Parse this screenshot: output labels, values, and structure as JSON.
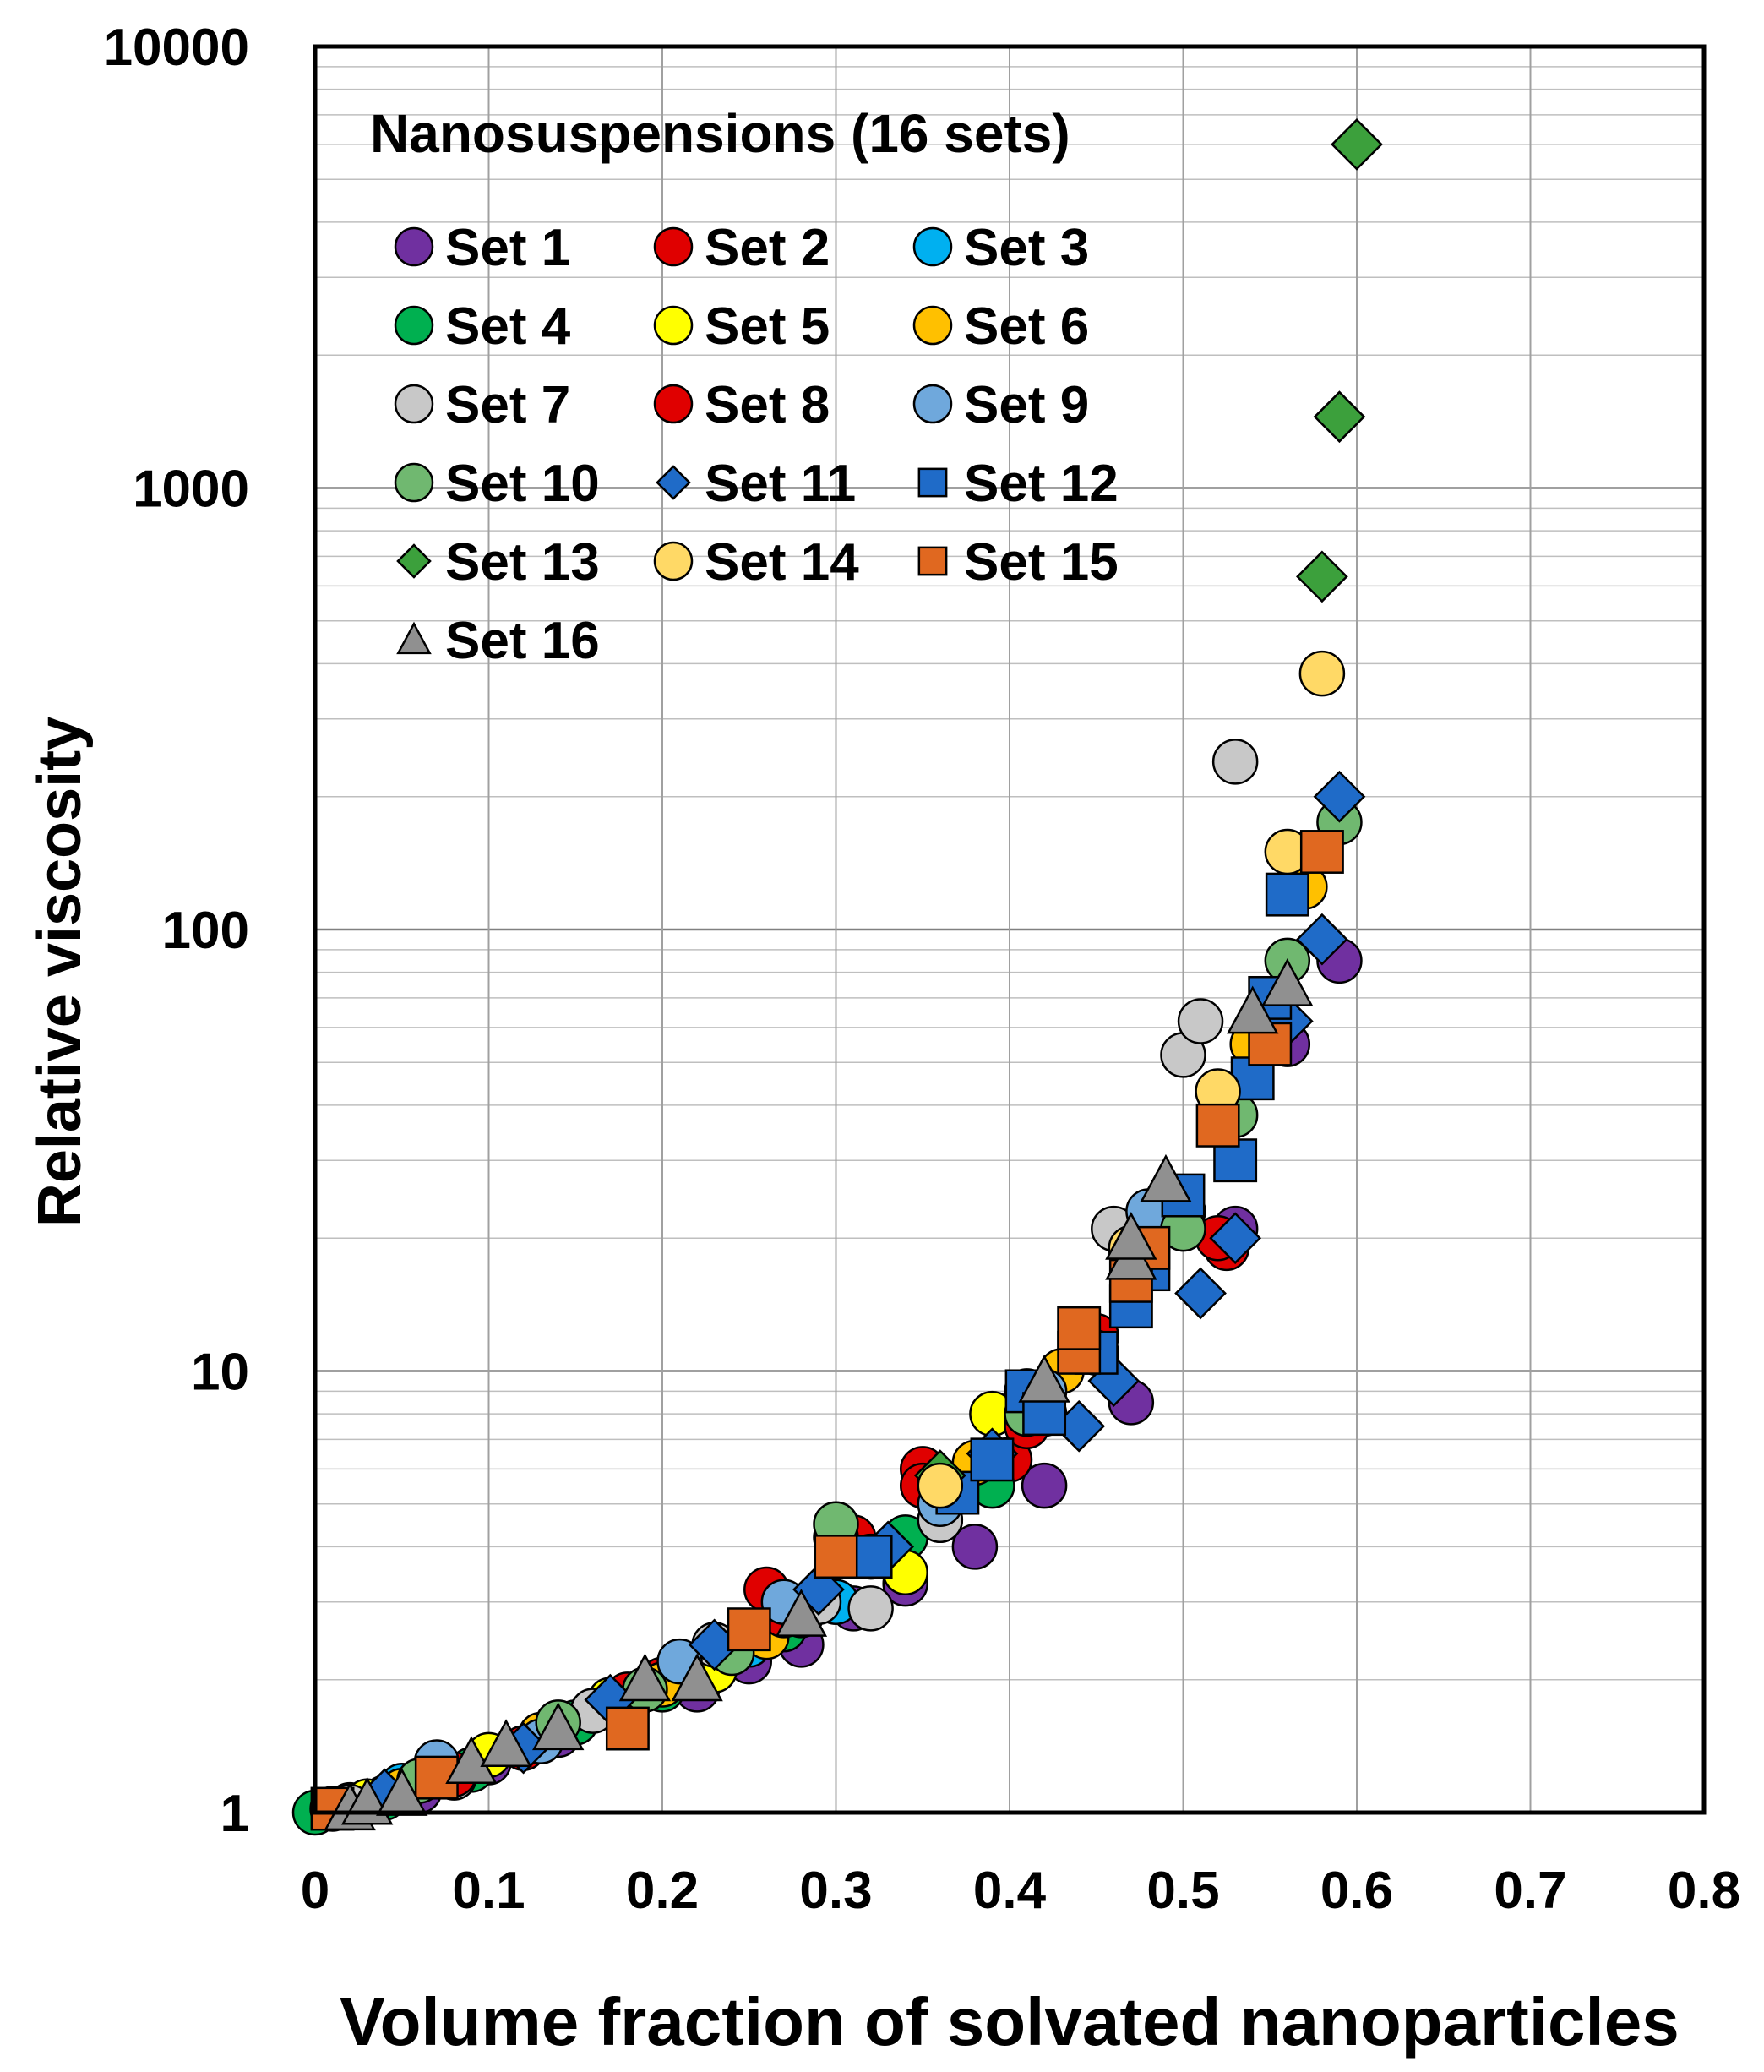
{
  "chart_data": {
    "type": "scatter",
    "title": "",
    "xlabel": "Volume fraction of solvated nanoparticles",
    "ylabel": "Relative viscosity",
    "xlim": [
      0,
      0.8
    ],
    "ylim": [
      1,
      10000
    ],
    "yscale": "log",
    "grid": true,
    "legend_title": "Nanosuspensions (16 sets)",
    "legend_position": "top-left",
    "x_ticks": [
      "0",
      "0.1",
      "0.2",
      "0.3",
      "0.4",
      "0.5",
      "0.6",
      "0.7",
      "0.8"
    ],
    "y_ticks": [
      "1",
      "10",
      "100",
      "1000",
      "10000"
    ],
    "series": [
      {
        "name": "Set 1",
        "marker": "circle",
        "color": "#7030A0",
        "points": [
          [
            0.02,
            1.04
          ],
          [
            0.06,
            1.12
          ],
          [
            0.1,
            1.3
          ],
          [
            0.14,
            1.5
          ],
          [
            0.18,
            1.75
          ],
          [
            0.22,
            1.9
          ],
          [
            0.25,
            2.2
          ],
          [
            0.28,
            2.4
          ],
          [
            0.31,
            2.9
          ],
          [
            0.34,
            3.3
          ],
          [
            0.38,
            4.0
          ],
          [
            0.42,
            5.5
          ],
          [
            0.47,
            8.5
          ],
          [
            0.53,
            21
          ],
          [
            0.56,
            55
          ],
          [
            0.59,
            85
          ]
        ]
      },
      {
        "name": "Set 2",
        "marker": "circle",
        "color": "#E00000",
        "points": [
          [
            0.12,
            1.4
          ],
          [
            0.2,
            2.0
          ],
          [
            0.26,
            3.2
          ],
          [
            0.31,
            4.2
          ],
          [
            0.35,
            6.0
          ],
          [
            0.4,
            6.3
          ],
          [
            0.45,
            12
          ],
          [
            0.5,
            23
          ],
          [
            0.525,
            19
          ]
        ]
      },
      {
        "name": "Set 3",
        "marker": "circle",
        "color": "#00B0F0",
        "points": [
          [
            0.05,
            1.15
          ],
          [
            0.15,
            1.6
          ],
          [
            0.25,
            2.4
          ],
          [
            0.3,
            3.0
          ],
          [
            0.36,
            4.6
          ],
          [
            0.42,
            8.0
          ],
          [
            0.48,
            22
          ]
        ]
      },
      {
        "name": "Set 4",
        "marker": "circle",
        "color": "#00B050",
        "points": [
          [
            0.0,
            1.0
          ],
          [
            0.04,
            1.08
          ],
          [
            0.09,
            1.25
          ],
          [
            0.15,
            1.6
          ],
          [
            0.2,
            1.9
          ],
          [
            0.27,
            2.6
          ],
          [
            0.34,
            4.2
          ],
          [
            0.39,
            5.5
          ],
          [
            0.45,
            11
          ]
        ]
      },
      {
        "name": "Set 5",
        "marker": "circle",
        "color": "#FFFF00",
        "points": [
          [
            0.03,
            1.06
          ],
          [
            0.1,
            1.35
          ],
          [
            0.17,
            1.8
          ],
          [
            0.23,
            2.1
          ],
          [
            0.28,
            2.8
          ],
          [
            0.34,
            3.5
          ],
          [
            0.39,
            8.0
          ],
          [
            0.47,
            19
          ]
        ]
      },
      {
        "name": "Set 6",
        "marker": "circle",
        "color": "#FFC000",
        "points": [
          [
            0.05,
            1.12
          ],
          [
            0.13,
            1.5
          ],
          [
            0.2,
            1.95
          ],
          [
            0.26,
            2.5
          ],
          [
            0.32,
            3.8
          ],
          [
            0.38,
            6.2
          ],
          [
            0.43,
            10
          ],
          [
            0.49,
            23
          ],
          [
            0.54,
            55
          ],
          [
            0.57,
            125
          ]
        ]
      },
      {
        "name": "Set 7",
        "marker": "circle",
        "color": "#C8C8C8",
        "points": [
          [
            0.02,
            1.03
          ],
          [
            0.08,
            1.2
          ],
          [
            0.16,
            1.7
          ],
          [
            0.23,
            2.4
          ],
          [
            0.29,
            3.0
          ],
          [
            0.32,
            2.9
          ],
          [
            0.36,
            4.6
          ],
          [
            0.41,
            9.0
          ],
          [
            0.46,
            21
          ],
          [
            0.5,
            52
          ],
          [
            0.51,
            62
          ],
          [
            0.53,
            240
          ]
        ]
      },
      {
        "name": "Set 8",
        "marker": "circle",
        "color": "#E00000",
        "points": [
          [
            0.08,
            1.22
          ],
          [
            0.18,
            1.85
          ],
          [
            0.27,
            2.8
          ],
          [
            0.35,
            5.5
          ],
          [
            0.41,
            7.5
          ],
          [
            0.52,
            20
          ]
        ]
      },
      {
        "name": "Set 9",
        "marker": "circle",
        "color": "#6FA8DC",
        "points": [
          [
            0.07,
            1.3
          ],
          [
            0.13,
            1.45
          ],
          [
            0.21,
            2.2
          ],
          [
            0.27,
            3.0
          ],
          [
            0.3,
            4.2
          ],
          [
            0.36,
            5.0
          ],
          [
            0.42,
            9.0
          ],
          [
            0.48,
            23
          ]
        ]
      },
      {
        "name": "Set 10",
        "marker": "circle",
        "color": "#70B870",
        "points": [
          [
            0.01,
            1.02
          ],
          [
            0.06,
            1.18
          ],
          [
            0.14,
            1.6
          ],
          [
            0.19,
            1.9
          ],
          [
            0.24,
            2.3
          ],
          [
            0.3,
            4.5
          ],
          [
            0.36,
            5.6
          ],
          [
            0.41,
            8.0
          ],
          [
            0.5,
            21
          ],
          [
            0.53,
            38
          ],
          [
            0.56,
            85
          ],
          [
            0.59,
            175
          ]
        ]
      },
      {
        "name": "Set 11",
        "marker": "diamond",
        "color": "#1F6BC8",
        "points": [
          [
            0.04,
            1.1
          ],
          [
            0.12,
            1.4
          ],
          [
            0.17,
            1.8
          ],
          [
            0.23,
            2.4
          ],
          [
            0.29,
            3.2
          ],
          [
            0.33,
            4.0
          ],
          [
            0.39,
            6.5
          ],
          [
            0.44,
            7.5
          ],
          [
            0.46,
            9.5
          ],
          [
            0.51,
            15
          ],
          [
            0.53,
            20
          ],
          [
            0.56,
            62
          ],
          [
            0.58,
            95
          ],
          [
            0.59,
            200
          ]
        ]
      },
      {
        "name": "Set 12",
        "marker": "square",
        "color": "#1F6BC8",
        "points": [
          [
            0.32,
            3.8
          ],
          [
            0.37,
            5.3
          ],
          [
            0.39,
            6.3
          ],
          [
            0.41,
            9.0
          ],
          [
            0.42,
            8.0
          ],
          [
            0.45,
            11
          ],
          [
            0.47,
            14
          ],
          [
            0.48,
            17
          ],
          [
            0.5,
            25
          ],
          [
            0.53,
            30
          ],
          [
            0.54,
            46
          ],
          [
            0.55,
            70
          ],
          [
            0.56,
            120
          ]
        ]
      },
      {
        "name": "Set 13",
        "marker": "diamond",
        "color": "#3CA03C",
        "points": [
          [
            0.36,
            5.8
          ],
          [
            0.58,
            630
          ],
          [
            0.59,
            1450
          ],
          [
            0.6,
            6000
          ]
        ]
      },
      {
        "name": "Set 14",
        "marker": "circle",
        "color": "#FFD966",
        "points": [
          [
            0.36,
            5.5
          ],
          [
            0.47,
            19
          ],
          [
            0.52,
            43
          ],
          [
            0.56,
            150
          ],
          [
            0.58,
            380
          ]
        ]
      },
      {
        "name": "Set 15",
        "marker": "square",
        "color": "#E06820",
        "points": [
          [
            0.01,
            1.02
          ],
          [
            0.07,
            1.2
          ],
          [
            0.18,
            1.55
          ],
          [
            0.25,
            2.6
          ],
          [
            0.3,
            3.8
          ],
          [
            0.44,
            11
          ],
          [
            0.44,
            12.5
          ],
          [
            0.47,
            16
          ],
          [
            0.48,
            19
          ],
          [
            0.52,
            36
          ],
          [
            0.55,
            55
          ],
          [
            0.58,
            150
          ]
        ]
      },
      {
        "name": "Set 16",
        "marker": "triangle",
        "color": "#909090",
        "points": [
          [
            0.02,
            1.02
          ],
          [
            0.03,
            1.05
          ],
          [
            0.05,
            1.1
          ],
          [
            0.09,
            1.3
          ],
          [
            0.11,
            1.42
          ],
          [
            0.14,
            1.55
          ],
          [
            0.19,
            2.0
          ],
          [
            0.22,
            2.0
          ],
          [
            0.28,
            2.8
          ],
          [
            0.42,
            9.5
          ],
          [
            0.47,
            18
          ],
          [
            0.47,
            20
          ],
          [
            0.49,
            27
          ],
          [
            0.54,
            65
          ],
          [
            0.56,
            75
          ]
        ]
      }
    ]
  }
}
